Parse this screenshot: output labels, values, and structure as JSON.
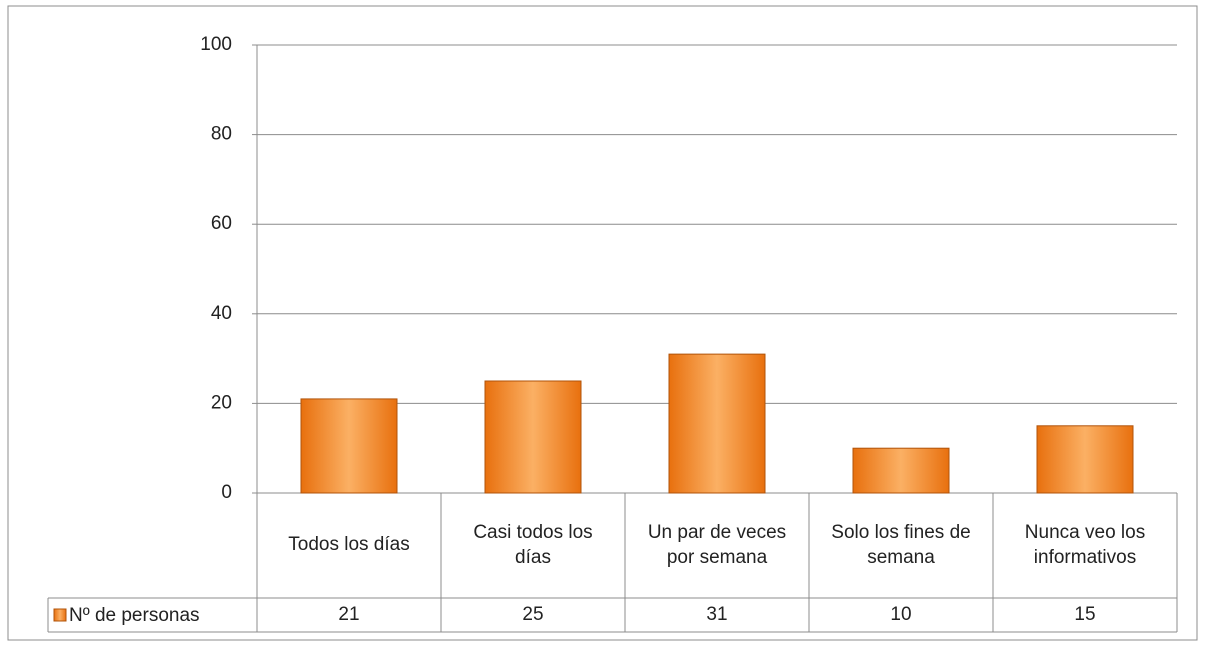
{
  "chart_data": {
    "type": "bar",
    "categories": [
      "Todos los días",
      "Casi todos los días",
      "Un par de veces por semana",
      "Solo los fines de semana",
      "Nunca veo los informativos"
    ],
    "series": [
      {
        "name": "Nº de personas",
        "color": "#f79646",
        "values": [
          21,
          25,
          31,
          10,
          15
        ]
      }
    ],
    "ylim": [
      0,
      100
    ],
    "yticks": [
      0,
      20,
      40,
      60,
      80,
      100
    ],
    "grid": true
  }
}
